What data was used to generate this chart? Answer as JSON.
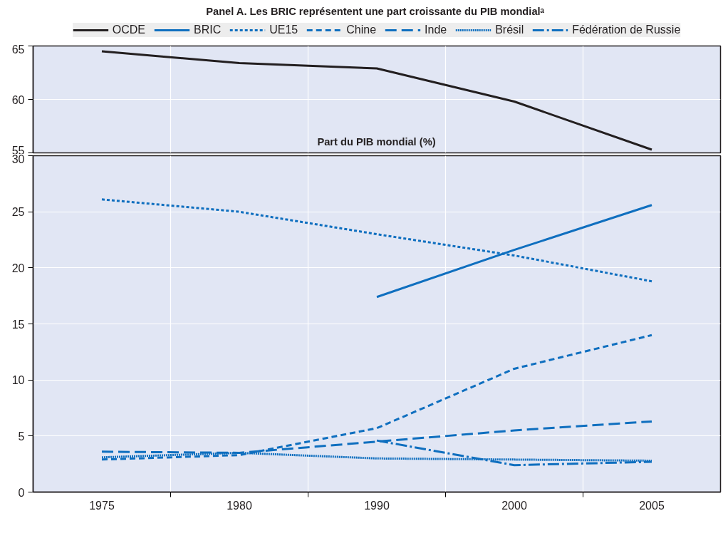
{
  "chart_data": [
    {
      "type": "line",
      "title": "Panel A.  Les BRIC représentent une part croissante du PIB mondialᵃ",
      "ylabel": "Part du PIB mondial (%)",
      "categories": [
        "1975",
        "1980",
        "1990",
        "2000",
        "2005"
      ],
      "ylim": [
        55,
        65
      ],
      "yticks": [
        55,
        60,
        65
      ],
      "grid": true,
      "legend": "top",
      "tick_labels": "y",
      "line_style": "solid",
      "series": [
        {
          "name": "OCDE",
          "color": "#231f20",
          "values": [
            64.5,
            63.4,
            62.9,
            59.8,
            55.3
          ]
        }
      ]
    },
    {
      "type": "line",
      "categories": [
        "1975",
        "1980",
        "1990",
        "2000",
        "2005"
      ],
      "ylim": [
        0,
        30
      ],
      "yticks": [
        0,
        5,
        10,
        15,
        20,
        25,
        30
      ],
      "grid": true,
      "legend": "top",
      "series": [
        {
          "name": "BRIC",
          "color": "#0f6fbf",
          "line_style": "solid",
          "values": [
            null,
            null,
            17.4,
            21.6,
            25.6
          ]
        },
        {
          "name": "UE15",
          "color": "#0f6fbf",
          "line_style": "dotted",
          "values": [
            26.1,
            25.0,
            23.0,
            21.1,
            18.8
          ]
        },
        {
          "name": "Chine",
          "color": "#0f6fbf",
          "line_style": "dashed",
          "values": [
            2.9,
            3.3,
            5.7,
            11.0,
            14.0
          ]
        },
        {
          "name": "Inde",
          "color": "#0f6fbf",
          "line_style": "longdash",
          "values": [
            3.6,
            3.5,
            4.5,
            5.5,
            6.3
          ]
        },
        {
          "name": "Brésil",
          "color": "#0f6fbf",
          "line_style": "densedot",
          "values": [
            3.1,
            3.5,
            3.0,
            2.9,
            2.8
          ]
        },
        {
          "name": "Fédération de Russie",
          "color": "#0f6fbf",
          "line_style": "dashdot",
          "values": [
            null,
            null,
            4.6,
            2.4,
            2.7
          ]
        }
      ]
    }
  ]
}
